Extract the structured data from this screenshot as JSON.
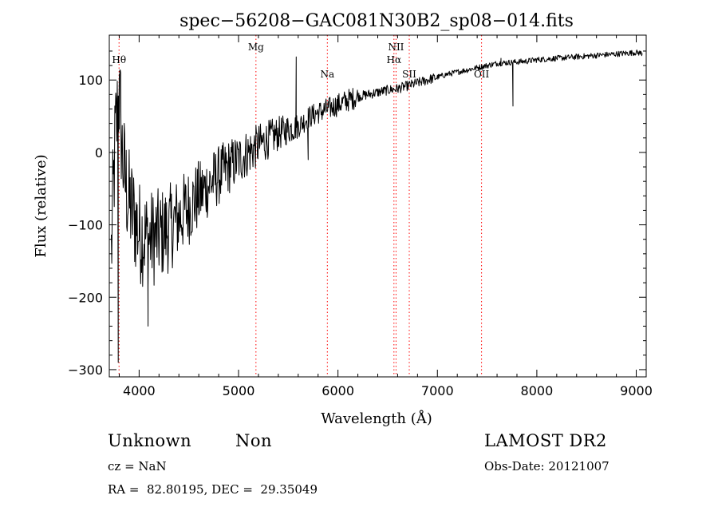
{
  "chart_data": {
    "type": "line",
    "title": "spec−56208−GAC081N30B2_sp08−014.fits",
    "xlabel": "Wavelength (Å)",
    "ylabel": "Flux (relative)",
    "xlim": [
      3700,
      9100
    ],
    "ylim": [
      -310,
      162
    ],
    "xticks": [
      {
        "value": 4000,
        "label": "4000"
      },
      {
        "value": 5000,
        "label": "5000"
      },
      {
        "value": 6000,
        "label": "6000"
      },
      {
        "value": 7000,
        "label": "7000"
      },
      {
        "value": 8000,
        "label": "8000"
      },
      {
        "value": 9000,
        "label": "9000"
      }
    ],
    "yticks": [
      {
        "value": -300,
        "label": "−300"
      },
      {
        "value": -200,
        "label": "−200"
      },
      {
        "value": -100,
        "label": "−100"
      },
      {
        "value": 0,
        "label": "0"
      },
      {
        "value": 100,
        "label": "100"
      }
    ],
    "line_color": "#000000",
    "marker_color": "#ff0000",
    "grid": false,
    "spectrum": {
      "x": [
        3720,
        3760,
        3800,
        3830,
        3860,
        3900,
        3950,
        4000,
        4100,
        4200,
        4300,
        4400,
        4500,
        4600,
        4700,
        4800,
        4900,
        5000,
        5100,
        5200,
        5300,
        5400,
        5500,
        5600,
        5700,
        5800,
        5900,
        6000,
        6100,
        6200,
        6300,
        6400,
        6500,
        6600,
        6700,
        6800,
        6900,
        7000,
        7100,
        7200,
        7300,
        7400,
        7500,
        7600,
        7700,
        7800,
        7900,
        8000,
        8100,
        8200,
        8300,
        8400,
        8500,
        8600,
        8700,
        8800,
        8900,
        9000,
        9060
      ],
      "y": [
        -140,
        20,
        80,
        0,
        -40,
        -70,
        -90,
        -110,
        -120,
        -115,
        -105,
        -90,
        -75,
        -60,
        -45,
        -32,
        -20,
        -10,
        0,
        10,
        18,
        26,
        32,
        36,
        48,
        55,
        60,
        66,
        72,
        77,
        80,
        83,
        86,
        88,
        92,
        96,
        100,
        104,
        108,
        111,
        114,
        117,
        120,
        123,
        124,
        125,
        126,
        128,
        129,
        130,
        131,
        132,
        133,
        134,
        135,
        136,
        137,
        138,
        137
      ],
      "spikes": [
        {
          "x": 3790,
          "y": -290
        },
        {
          "x": 3800,
          "y": 108
        },
        {
          "x": 3815,
          "y": 110
        },
        {
          "x": 4090,
          "y": -240
        },
        {
          "x": 5580,
          "y": 132
        },
        {
          "x": 5700,
          "y": -10
        },
        {
          "x": 7640,
          "y": 130
        },
        {
          "x": 7760,
          "y": 64
        }
      ]
    },
    "lines": [
      {
        "label": "Hθ",
        "x": 3798,
        "label_row": 1
      },
      {
        "label": "Mg",
        "x": 5175,
        "label_row": 0
      },
      {
        "label": "Na",
        "x": 5893,
        "label_row": 2
      },
      {
        "label": "NII",
        "x": 6584,
        "label_row": 0
      },
      {
        "label": "Hα",
        "x": 6563,
        "label_row": 1
      },
      {
        "label": "SII",
        "x": 6717,
        "label_row": 2
      },
      {
        "label": "OII",
        "x": 7444,
        "label_row": 2
      }
    ]
  },
  "info": {
    "class": "Unknown",
    "subclass": "Non",
    "cz": "cz = NaN",
    "radec": "RA =  82.80195, DEC =  29.35049",
    "survey": "LAMOST DR2",
    "obsdate": "Obs-Date: 20121007"
  }
}
